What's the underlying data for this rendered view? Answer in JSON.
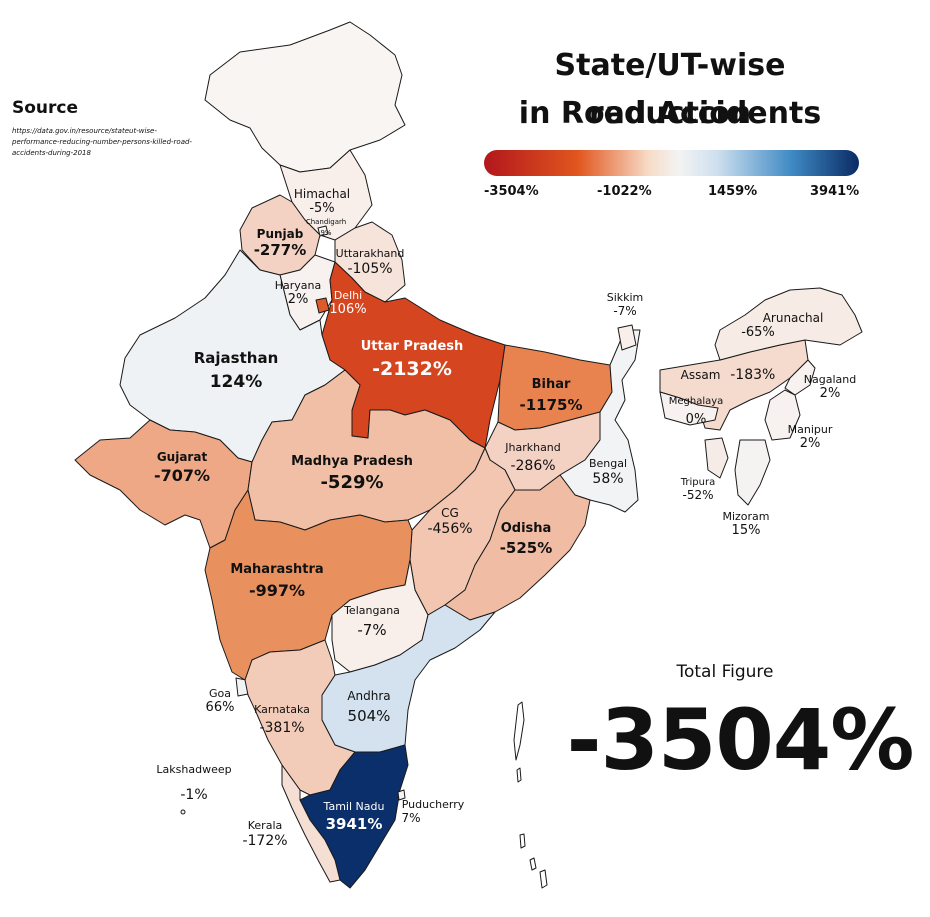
{
  "title_line1": "State/UT-wise reduction",
  "title_line2": "in Road Accidents",
  "legend": {
    "ticks": [
      "-3504%",
      "-1022%",
      "1459%",
      "3941%"
    ],
    "colors": [
      "#b2171c",
      "#e1561e",
      "#f3f3f3",
      "#3f8ac4",
      "#0b2a63"
    ]
  },
  "source": {
    "heading": "Source",
    "link": "https://data.gov.in/resource/stateut-wise-performance-reducing-number-persons-killed-road-accidents-during-2018"
  },
  "total": {
    "label": "Total Figure",
    "value": "-3504%"
  },
  "regions": {
    "himachal": {
      "name": "Himachal",
      "value": "-5%",
      "color": "#f8eeea"
    },
    "chandigarh": {
      "name": "Chandigarh",
      "value": "9%",
      "color": "#f7f4f3"
    },
    "punjab": {
      "name": "Punjab",
      "value": "-277%",
      "color": "#f3d2c4"
    },
    "uttarakhand": {
      "name": "Uttarakhand",
      "value": "-105%",
      "color": "#f6e4db"
    },
    "haryana": {
      "name": "Haryana",
      "value": "2%",
      "color": "#f7f1ef"
    },
    "delhi": {
      "name": "Delhi",
      "value": "106%",
      "color": "#dd5a2b"
    },
    "uttar_pradesh": {
      "name": "Uttar Pradesh",
      "value": "-2132%",
      "color": "#d5451f"
    },
    "rajasthan": {
      "name": "Rajasthan",
      "value": "124%",
      "color": "#eef2f4"
    },
    "bihar": {
      "name": "Bihar",
      "value": "-1175%",
      "color": "#e88350"
    },
    "sikkim": {
      "name": "Sikkim",
      "value": "-7%",
      "color": "#f8eeea"
    },
    "arunachal": {
      "name": "Arunachal",
      "value": "-65%",
      "color": "#f6ebe5"
    },
    "assam": {
      "name": "Assam",
      "value": "-183%",
      "color": "#f4dbce"
    },
    "meghalaya": {
      "name": "Meghalaya",
      "value": "0%",
      "color": "#f7f1ef"
    },
    "nagaland": {
      "name": "Nagaland",
      "value": "2%",
      "color": "#f7f1ef"
    },
    "manipur": {
      "name": "Manipur",
      "value": "2%",
      "color": "#f7f1ef"
    },
    "tripura": {
      "name": "Tripura",
      "value": "-52%",
      "color": "#f6ece7"
    },
    "mizoram": {
      "name": "Mizoram",
      "value": "15%",
      "color": "#f5f3f2"
    },
    "gujarat": {
      "name": "Gujarat",
      "value": "-707%",
      "color": "#eea886"
    },
    "madhya_pradesh": {
      "name": "Madhya Pradesh",
      "value": "-529%",
      "color": "#f1bfa6"
    },
    "jharkhand": {
      "name": "Jharkhand",
      "value": "-286%",
      "color": "#f3d2c4"
    },
    "bengal": {
      "name": "Bengal",
      "value": "58%",
      "color": "#f2f3f5"
    },
    "cg": {
      "name": "CG",
      "value": "-456%",
      "color": "#f2c6b0"
    },
    "odisha": {
      "name": "Odisha",
      "value": "-525%",
      "color": "#f0bca3"
    },
    "maharashtra": {
      "name": "Maharashtra",
      "value": "-997%",
      "color": "#e8915f"
    },
    "telangana": {
      "name": "Telangana",
      "value": "-7%",
      "color": "#f8eeea"
    },
    "goa": {
      "name": "Goa",
      "value": "66%",
      "color": "#f1f3f5"
    },
    "karnataka": {
      "name": "Karnataka",
      "value": "-381%",
      "color": "#f2ccb9"
    },
    "andhra": {
      "name": "Andhra",
      "value": "504%",
      "color": "#d3e2ee"
    },
    "lakshadweep": {
      "name": "Lakshadweep",
      "value": "-1%",
      "color": "#f7f1ef"
    },
    "tamil_nadu": {
      "name": "Tamil Nadu",
      "value": "3941%",
      "color": "#0b2f6b"
    },
    "puducherry": {
      "name": "Puducherry",
      "value": "7%",
      "color": "#f7f4f3"
    },
    "kerala": {
      "name": "Kerala",
      "value": "-172%",
      "color": "#f5dfd4"
    }
  }
}
